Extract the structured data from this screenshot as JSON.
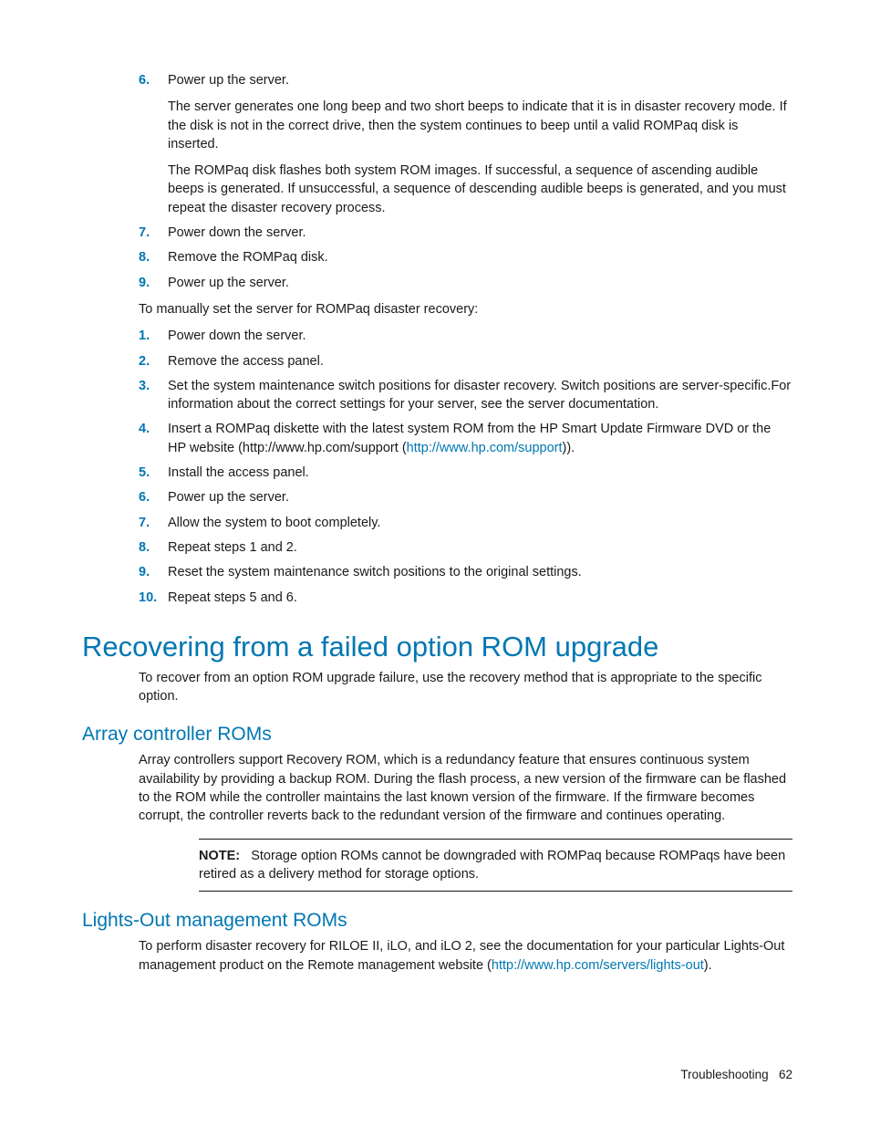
{
  "colors": {
    "accent": "#0077b3",
    "text": "#1a1a1a",
    "background": "#ffffff"
  },
  "typography": {
    "body_fontsize": 14.5,
    "h1_fontsize": 31,
    "h2_fontsize": 21,
    "footer_fontsize": 13.5
  },
  "list1": [
    {
      "num": "6.",
      "paras": [
        "Power up the server.",
        "The server generates one long beep and two short beeps to indicate that it is in disaster recovery mode. If the disk is not in the correct drive, then the system continues to beep until a valid ROMPaq disk is inserted.",
        "The ROMPaq disk flashes both system ROM images. If successful, a sequence of ascending audible beeps is generated. If unsuccessful, a sequence of descending audible beeps is generated, and you must repeat the disaster recovery process."
      ]
    },
    {
      "num": "7.",
      "paras": [
        "Power down the server."
      ]
    },
    {
      "num": "8.",
      "paras": [
        "Remove the ROMPaq disk."
      ]
    },
    {
      "num": "9.",
      "paras": [
        "Power up the server."
      ]
    }
  ],
  "intro2": "To manually set the server for ROMPaq disaster recovery:",
  "list2": [
    {
      "num": "1.",
      "paras": [
        "Power down the server."
      ]
    },
    {
      "num": "2.",
      "paras": [
        "Remove the access panel."
      ]
    },
    {
      "num": "3.",
      "paras": [
        "Set the system maintenance switch positions for disaster recovery. Switch positions are server-specific.For information about the correct settings for your server, see the server documentation."
      ]
    },
    {
      "num": "4.",
      "pre": "Insert a ROMPaq diskette with the latest system ROM from the HP Smart Update Firmware DVD or the HP website (http://www.hp.com/support (",
      "link": "http://www.hp.com/support",
      "post": "))."
    },
    {
      "num": "5.",
      "paras": [
        "Install the access panel."
      ]
    },
    {
      "num": "6.",
      "paras": [
        "Power up the server."
      ]
    },
    {
      "num": "7.",
      "paras": [
        "Allow the system to boot completely."
      ]
    },
    {
      "num": "8.",
      "paras": [
        "Repeat steps 1 and 2."
      ]
    },
    {
      "num": "9.",
      "paras": [
        "Reset the system maintenance switch positions to the original settings."
      ]
    },
    {
      "num": "10.",
      "paras": [
        "Repeat steps 5 and 6."
      ]
    }
  ],
  "h1": "Recovering from a failed option ROM upgrade",
  "h1_intro": "To recover from an option ROM upgrade failure, use the recovery method that is appropriate to the specific option.",
  "h2a": "Array controller ROMs",
  "h2a_intro": "Array controllers support Recovery ROM, which is a redundancy feature that ensures continuous system availability by providing a backup ROM. During the flash process, a new version of the firmware can be flashed to the ROM while the controller maintains the last known version of the firmware. If the firmware becomes corrupt, the controller reverts back to the redundant version of the firmware and continues operating.",
  "note_label": "NOTE:",
  "note_text": "Storage option ROMs cannot be downgraded with ROMPaq because ROMPaqs have been retired as a delivery method for storage options.",
  "h2b": "Lights-Out management ROMs",
  "h2b_pre": "To perform disaster recovery for RILOE II, iLO, and iLO 2, see the documentation for your particular Lights-Out management product on the Remote management website (",
  "h2b_link": "http://www.hp.com/servers/lights-out",
  "h2b_post": ").",
  "footer_section": "Troubleshooting",
  "footer_page": "62"
}
